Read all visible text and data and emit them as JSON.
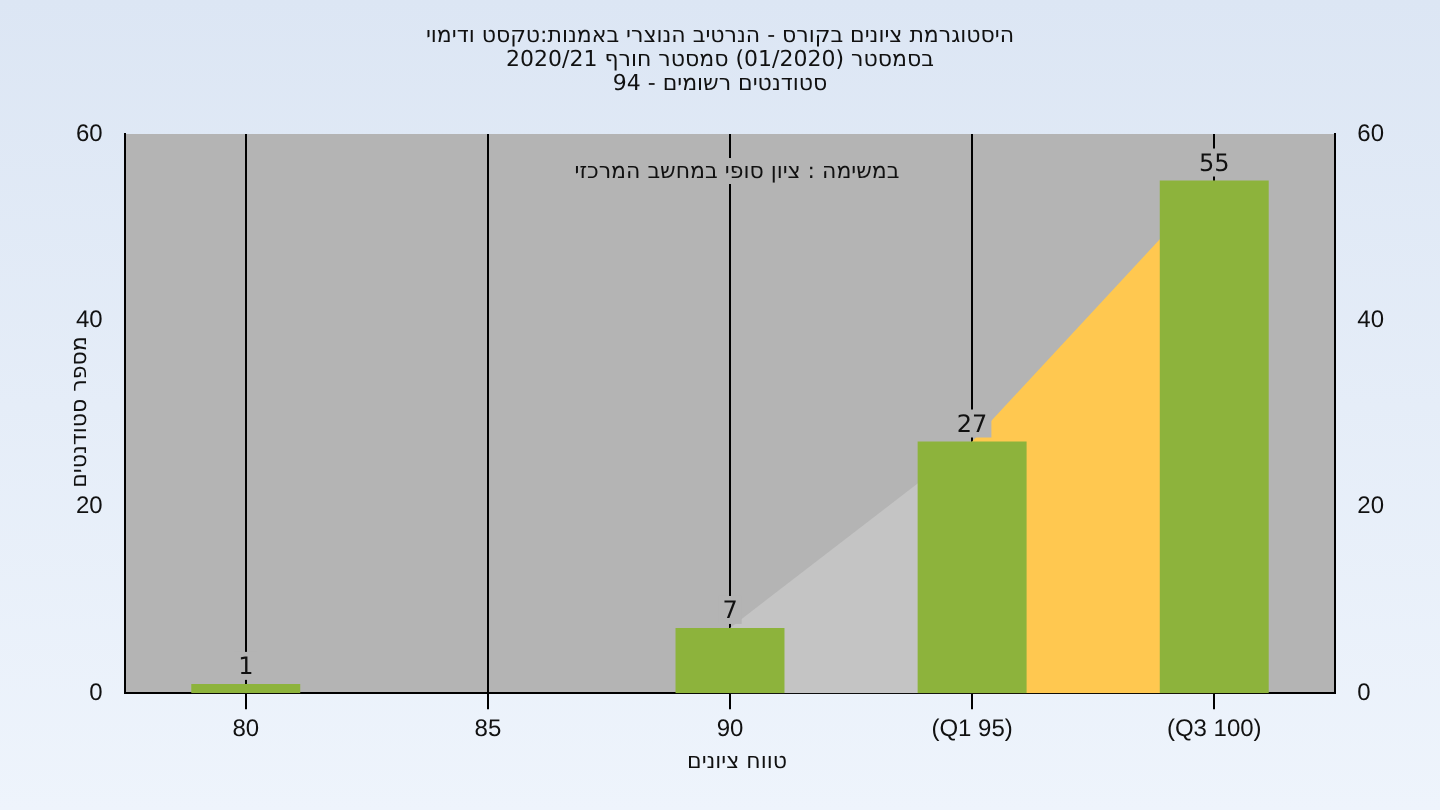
{
  "chart_data": {
    "type": "bar",
    "title": "היסטוגרמת ציונים בקורס - הנרטיב הנוצרי באמנות:טקסט ודימוי",
    "subtitle": "בסמסטר  (01/2020)  סמסטר חורף 2020/21\nסטודנטים רשומים - 94",
    "xlabel": "טווח ציונים",
    "ylabel": "מספר סטודנטים",
    "annotations": [
      "במשימה : ציון סופי במחשב המרכזי"
    ],
    "categories": [
      "80",
      "85",
      "90",
      "(Q1 95)",
      "(Q3 100)"
    ],
    "series": [
      {
        "type": "area",
        "color": "#c4c4c4",
        "values": [
          null,
          null,
          7,
          27,
          null
        ]
      },
      {
        "type": "area",
        "color": "#ffc850",
        "values": [
          null,
          null,
          null,
          27,
          55
        ]
      },
      {
        "color": "#8db33c",
        "values": [
          1,
          0,
          7,
          27,
          55
        ],
        "value_labels": [
          "1",
          null,
          "7",
          "27",
          "55"
        ]
      }
    ],
    "ylim": [
      0,
      60
    ],
    "yticks": [
      0,
      20,
      40,
      60
    ],
    "y2lim": [
      0,
      60
    ],
    "y2ticks": [
      0,
      20,
      40,
      60
    ],
    "grid": "x"
  }
}
